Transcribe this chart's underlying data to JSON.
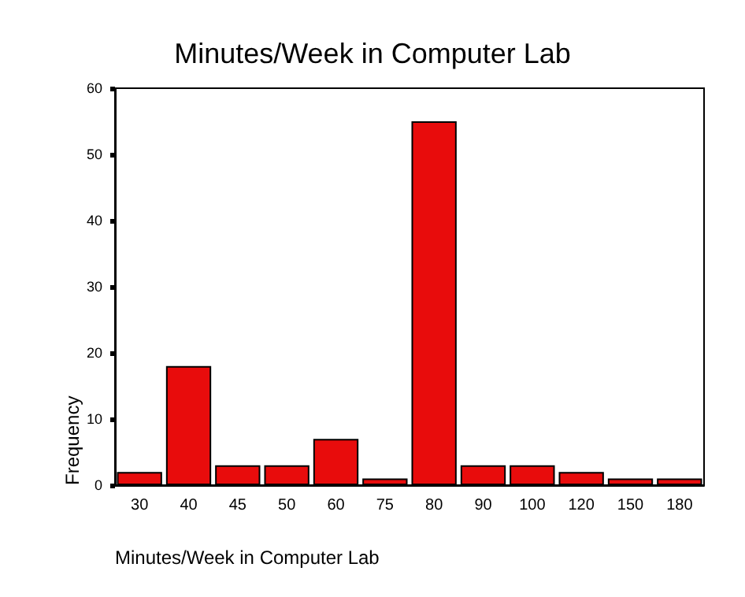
{
  "chart_data": {
    "type": "bar",
    "title": "Minutes/Week in Computer Lab",
    "xlabel": "Minutes/Week in Computer Lab",
    "ylabel": "Frequency",
    "categories": [
      "30",
      "40",
      "45",
      "50",
      "60",
      "75",
      "80",
      "90",
      "100",
      "120",
      "150",
      "180"
    ],
    "values": [
      2,
      18,
      3,
      3,
      7,
      1,
      55,
      3,
      3,
      2,
      1,
      1
    ],
    "color": "#e80c0c",
    "ylim": [
      0,
      60
    ],
    "yticks": [
      0,
      10,
      20,
      30,
      40,
      50,
      60
    ],
    "grid": false
  }
}
